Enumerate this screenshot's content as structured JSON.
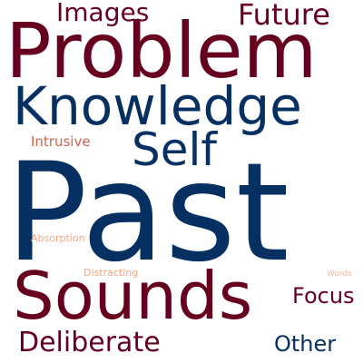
{
  "colors": {
    "background": "#ffffff",
    "maroon": "#67001f",
    "navy": "#053061",
    "red": "#d6604d",
    "salmon": "#f4a582",
    "light_salmon": "#f7b79b"
  },
  "words": [
    {
      "id": "past",
      "text": "Past",
      "color": "#053061"
    },
    {
      "id": "problem",
      "text": "Problem",
      "color": "#67001f"
    },
    {
      "id": "sounds",
      "text": "Sounds",
      "color": "#67001f"
    },
    {
      "id": "knowledge",
      "text": "Knowledge",
      "color": "#053061"
    },
    {
      "id": "self",
      "text": "Self",
      "color": "#053061"
    },
    {
      "id": "future",
      "text": "Future",
      "color": "#67001f"
    },
    {
      "id": "images",
      "text": "Images",
      "color": "#67001f"
    },
    {
      "id": "deliberate",
      "text": "Deliberate",
      "color": "#67001f"
    },
    {
      "id": "focus",
      "text": "Focus",
      "color": "#67001f"
    },
    {
      "id": "other",
      "text": "Other",
      "color": "#053061"
    },
    {
      "id": "intrusive",
      "text": "Intrusive",
      "color": "#d6604d"
    },
    {
      "id": "absorption",
      "text": "Absorption",
      "color": "#f4a582"
    },
    {
      "id": "distracting",
      "text": "Distracting",
      "color": "#f4a582"
    },
    {
      "id": "words",
      "text": "Words",
      "color": "#f7b79b"
    }
  ]
}
